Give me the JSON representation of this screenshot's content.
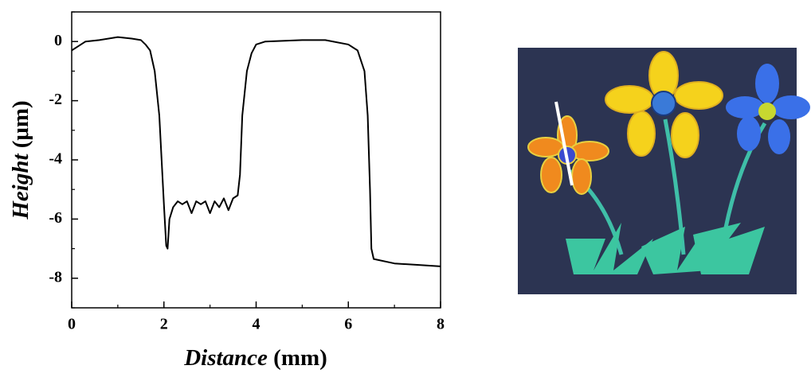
{
  "chart_data": {
    "type": "line",
    "xlabel": [
      "Distance",
      "(mm)"
    ],
    "ylabel": [
      "Height",
      "(μm)"
    ],
    "xlim": [
      0,
      8
    ],
    "xticks": [
      0,
      2,
      4,
      6,
      8
    ],
    "xminor": [
      1,
      3,
      5,
      7
    ],
    "ylim": [
      -9,
      1
    ],
    "yticks": [
      0,
      -2,
      -4,
      -6,
      -8
    ],
    "yminor": [
      -9,
      -7,
      -5,
      -3,
      -1,
      1
    ],
    "series": [
      {
        "color": "#000000",
        "x": [
          0,
          0.15,
          0.3,
          0.6,
          1.0,
          1.3,
          1.5,
          1.6,
          1.7,
          1.8,
          1.9,
          1.95,
          2.0,
          2.05,
          2.08,
          2.12,
          2.2,
          2.3,
          2.4,
          2.5,
          2.6,
          2.7,
          2.8,
          2.9,
          3.0,
          3.1,
          3.2,
          3.3,
          3.4,
          3.5,
          3.6,
          3.65,
          3.7,
          3.8,
          3.9,
          4.0,
          4.2,
          5.0,
          5.5,
          6.0,
          6.2,
          6.35,
          6.42,
          6.47,
          6.5,
          6.55,
          7.0,
          7.5,
          8.0
        ],
        "values": [
          -0.3,
          -0.15,
          0.0,
          0.05,
          0.15,
          0.1,
          0.05,
          -0.1,
          -0.3,
          -1.0,
          -2.5,
          -4.0,
          -5.5,
          -6.9,
          -7.0,
          -6.0,
          -5.6,
          -5.4,
          -5.5,
          -5.4,
          -5.8,
          -5.4,
          -5.5,
          -5.4,
          -5.8,
          -5.4,
          -5.6,
          -5.3,
          -5.7,
          -5.3,
          -5.2,
          -4.5,
          -2.5,
          -1.0,
          -0.4,
          -0.1,
          0.0,
          0.05,
          0.05,
          -0.1,
          -0.3,
          -1.0,
          -2.5,
          -5.0,
          -7.0,
          -7.35,
          -7.5,
          -7.55,
          -7.6
        ]
      }
    ]
  }
}
